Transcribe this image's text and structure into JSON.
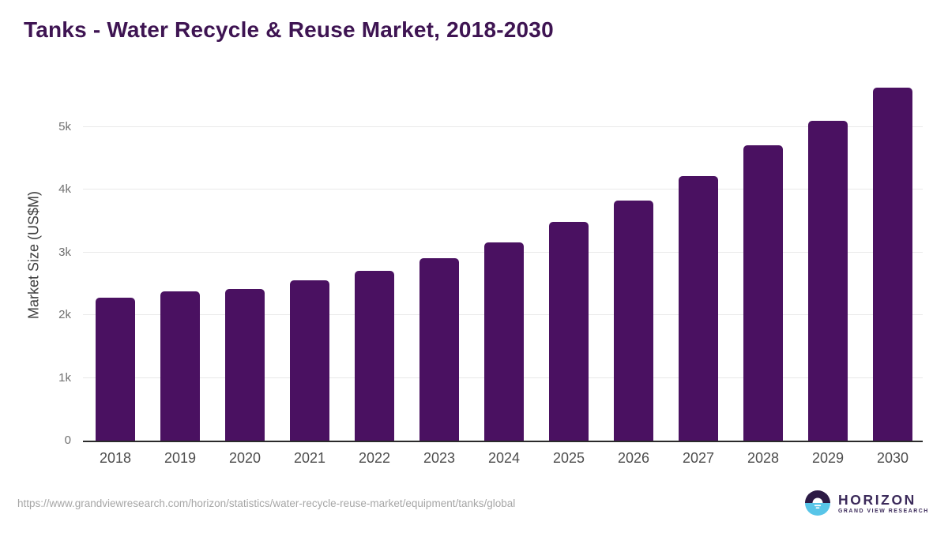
{
  "header": {
    "title": "Tanks - Water Recycle & Reuse Market, 2018-2030"
  },
  "chart_data": {
    "type": "bar",
    "title": "Tanks - Water Recycle & Reuse Market, 2018-2030",
    "categories": [
      "2018",
      "2019",
      "2020",
      "2021",
      "2022",
      "2023",
      "2024",
      "2025",
      "2026",
      "2027",
      "2028",
      "2029",
      "2030"
    ],
    "values": [
      2280,
      2380,
      2420,
      2550,
      2710,
      2900,
      3160,
      3490,
      3830,
      4220,
      4700,
      5100,
      5620
    ],
    "xlabel": "",
    "ylabel": "Market Size (US$M)",
    "ylim": [
      0,
      5770
    ],
    "yticks": [
      0,
      1000,
      2000,
      3000,
      4000,
      5000
    ],
    "ytick_labels": [
      "0",
      "1k",
      "2k",
      "3k",
      "4k",
      "5k"
    ],
    "grid": true,
    "legend": false,
    "bar_color": "#4a1161"
  },
  "footer": {
    "source_url": "https://www.grandviewresearch.com/horizon/statistics/water-recycle-reuse-market/equipment/tanks/global",
    "logo": {
      "brand": "HORIZON",
      "subbrand": "GRAND VIEW RESEARCH"
    }
  },
  "colors": {
    "bar": "#4a1161",
    "title_text": "#3e1452",
    "gridline": "#e9e9e9",
    "axis_line": "#2b2b2b",
    "tick_text": "#707070",
    "year_text": "#4d4d4d",
    "url_text": "#a6a6a6",
    "logo_purple": "#3b2a5a",
    "logo_dark": "#2c1a45",
    "logo_blue": "#58c5e8"
  }
}
